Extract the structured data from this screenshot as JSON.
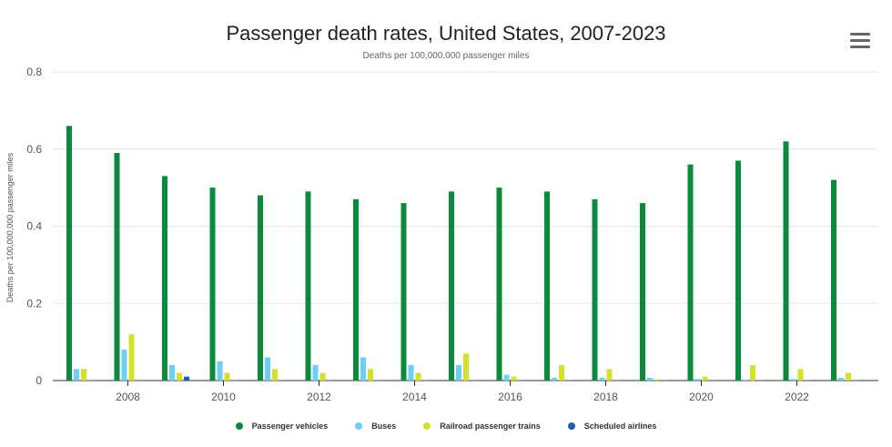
{
  "chart_data": {
    "type": "bar",
    "title": "Passenger death rates, United States, 2007-2023",
    "subtitle": "Deaths per 100,000,000 passenger miles",
    "ylabel": "Deaths per 100,000,000 passenger miles",
    "xlabel": "",
    "ylim": [
      0,
      0.8
    ],
    "yticks": [
      "0",
      "0.2",
      "0.4",
      "0.6",
      "0.8"
    ],
    "grid": true,
    "legend_position": "bottom",
    "categories": [
      2007,
      2008,
      2009,
      2010,
      2011,
      2012,
      2013,
      2014,
      2015,
      2016,
      2017,
      2018,
      2019,
      2020,
      2021,
      2022,
      2023
    ],
    "xtick_labels": [
      "2008",
      "2010",
      "2012",
      "2014",
      "2016",
      "2018",
      "2020",
      "2022"
    ],
    "series": [
      {
        "name": "Passenger vehicles",
        "color": "#0b8a3c",
        "values": [
          0.66,
          0.59,
          0.53,
          0.5,
          0.48,
          0.49,
          0.47,
          0.46,
          0.49,
          0.5,
          0.49,
          0.47,
          0.46,
          0.56,
          0.57,
          0.62,
          0.52
        ]
      },
      {
        "name": "Buses",
        "color": "#6ccff6",
        "values": [
          0.03,
          0.08,
          0.04,
          0.05,
          0.06,
          0.04,
          0.06,
          0.04,
          0.04,
          0.015,
          0.007,
          0.007,
          0.007,
          0.004,
          0.002,
          0.004,
          0.007
        ]
      },
      {
        "name": "Railroad passenger trains",
        "color": "#d4e02b",
        "values": [
          0.03,
          0.12,
          0.02,
          0.02,
          0.03,
          0.02,
          0.03,
          0.02,
          0.07,
          0.01,
          0.04,
          0.03,
          0.003,
          0.01,
          0.04,
          0.03,
          0.02
        ]
      },
      {
        "name": "Scheduled airlines",
        "color": "#1f5fa8",
        "values": [
          0.001,
          0.001,
          0.01,
          0.001,
          0.001,
          0.001,
          0.001,
          0.001,
          0.001,
          0.001,
          0.001,
          0.001,
          0.001,
          0.001,
          0.001,
          0.001,
          0.001
        ]
      }
    ]
  }
}
